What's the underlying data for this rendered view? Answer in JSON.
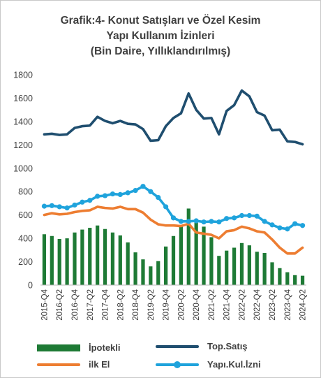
{
  "title_lines": [
    "Grafik:4- Konut Satışları ve Özel Kesim",
    "Yapı Kullanım İzinleri",
    "(Bin Daire, Yıllıklandırılmış)"
  ],
  "colors": {
    "ipotekli": "#1e7a35",
    "top_satis": "#1f4e6f",
    "ilk_el": "#ed7d31",
    "yapi_kul": "#1fa3dc",
    "axis": "#b8b8b8"
  },
  "legend": {
    "ipotekli": "İpotekli",
    "top_satis": "Top.Satış",
    "ilk_el": "ilk El",
    "yapi_kul": "Yapı.Kul.İzni"
  },
  "chart_data": {
    "type": "bar+line",
    "ylim": [
      0,
      1800
    ],
    "yticks": [
      0,
      200,
      400,
      600,
      800,
      1000,
      1200,
      1400,
      1600,
      1800
    ],
    "x": [
      "2015-Q4",
      "2016-Q1",
      "2016-Q2",
      "2016-Q3",
      "2016-Q4",
      "2017-Q1",
      "2017-Q2",
      "2017-Q3",
      "2017-Q4",
      "2018-Q1",
      "2018-Q2",
      "2018-Q3",
      "2018-Q4",
      "2019-Q1",
      "2019-Q2",
      "2019-Q3",
      "2019-Q4",
      "2020-Q1",
      "2020-Q2",
      "2020-Q3",
      "2020-Q4",
      "2021-Q1",
      "2021-Q2",
      "2021-Q3",
      "2021-Q4",
      "2022-Q1",
      "2022-Q2",
      "2022-Q3",
      "2022-Q4",
      "2023-Q1",
      "2023-Q2",
      "2023-Q3",
      "2023-Q4",
      "2024-Q1",
      "2024-Q2"
    ],
    "xtick_labels": [
      "2015-Q4",
      "2016-Q2",
      "2016-Q4",
      "2017-Q2",
      "2017-Q4",
      "2018-Q2",
      "2018-Q4",
      "2019-Q2",
      "2019-Q4",
      "2020-Q2",
      "2020-Q4",
      "2021-Q2",
      "2021-Q4",
      "2022-Q2",
      "2022-Q4",
      "2023-Q2",
      "2023-Q4",
      "2024-Q2"
    ],
    "series": [
      {
        "name": "İpotekli",
        "kind": "bar",
        "values": [
          435,
          420,
          395,
          400,
          450,
          475,
          490,
          510,
          480,
          450,
          425,
          365,
          280,
          220,
          160,
          205,
          330,
          420,
          500,
          655,
          560,
          500,
          410,
          250,
          295,
          320,
          360,
          340,
          285,
          275,
          195,
          145,
          110,
          85,
          80
        ]
      },
      {
        "name": "Top.Satış",
        "kind": "line",
        "values": [
          1290,
          1295,
          1285,
          1290,
          1345,
          1360,
          1365,
          1440,
          1405,
          1385,
          1405,
          1380,
          1375,
          1335,
          1235,
          1240,
          1360,
          1430,
          1470,
          1640,
          1500,
          1425,
          1430,
          1290,
          1490,
          1540,
          1665,
          1615,
          1480,
          1450,
          1325,
          1330,
          1230,
          1225,
          1205
        ]
      },
      {
        "name": "ilk El",
        "kind": "line",
        "values": [
          600,
          615,
          605,
          610,
          625,
          635,
          640,
          670,
          660,
          655,
          670,
          650,
          650,
          620,
          560,
          520,
          510,
          510,
          505,
          525,
          450,
          440,
          430,
          400,
          460,
          470,
          500,
          485,
          460,
          450,
          390,
          320,
          270,
          270,
          320
        ]
      },
      {
        "name": "Yapı.Kul.İzni",
        "kind": "line",
        "markers": true,
        "values": [
          675,
          680,
          670,
          660,
          685,
          710,
          725,
          760,
          765,
          780,
          775,
          790,
          810,
          845,
          800,
          750,
          670,
          575,
          545,
          545,
          550,
          540,
          545,
          540,
          570,
          575,
          595,
          595,
          590,
          545,
          515,
          490,
          480,
          525,
          510
        ]
      }
    ]
  }
}
